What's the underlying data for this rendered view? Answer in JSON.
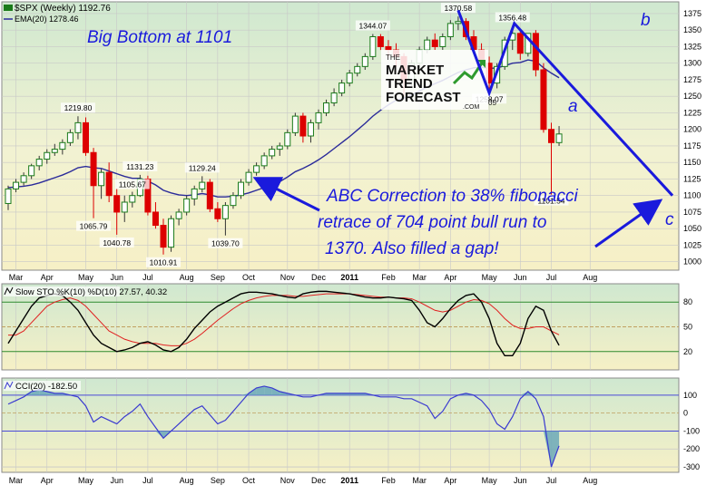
{
  "header": {
    "symbol": "$SPX (Weekly) 1192.76",
    "ema_legend": "EMA(20) 1278.46"
  },
  "annotations": {
    "big_bottom": "Big Bottom at 1101",
    "abc_lines": [
      "ABC Correction to 38% fibonacci",
      "retrace of 704 point bull run to",
      "1370. Also filled a gap!"
    ],
    "wave_a": "a",
    "wave_b": "b",
    "wave_c": "c"
  },
  "logo": {
    "line1": "THE",
    "line2": "MARKET",
    "line3": "TREND",
    "line4": "FORECAST",
    "line5": ".COM",
    "partial_label": "05"
  },
  "stoch_header": "Slow STO %K(10) %D(10) 27.57, 40.32",
  "cci_header": "CCI(20) -182.50",
  "colors": {
    "up_candle_border": "#1a7a1a",
    "down_candle_fill": "#dd0000",
    "ema_line": "#2b2b9a",
    "annotation_blue": "#1a1adc",
    "stoch_k": "#000000",
    "stoch_d": "#e02020",
    "cci_fill": "#6ba8b8",
    "cci_line": "#3a3ad0"
  },
  "chart_data": [
    {
      "type": "candlestick",
      "title": "$SPX (Weekly) 1192.76",
      "ylim": [
        990,
        1390
      ],
      "y_ticks": [
        1000,
        1025,
        1050,
        1075,
        1100,
        1125,
        1150,
        1175,
        1200,
        1225,
        1250,
        1275,
        1300,
        1325,
        1350,
        1375
      ],
      "x_labels": [
        "Mar",
        "Apr",
        "May",
        "Jun",
        "Jul",
        "Aug",
        "Sep",
        "Oct",
        "Nov",
        "Dec",
        "2011",
        "Feb",
        "Mar",
        "Apr",
        "May",
        "Jun",
        "Jul",
        "Aug"
      ],
      "x_label_week_index": [
        1,
        5,
        10,
        14,
        18,
        23,
        27,
        31,
        36,
        40,
        44,
        49,
        53,
        57,
        62,
        66,
        70,
        75
      ],
      "grid": true,
      "candles": [
        {
          "o": 1088,
          "h": 1115,
          "l": 1078,
          "c": 1110
        },
        {
          "o": 1110,
          "h": 1125,
          "l": 1105,
          "c": 1120
        },
        {
          "o": 1120,
          "h": 1135,
          "l": 1115,
          "c": 1130
        },
        {
          "o": 1130,
          "h": 1148,
          "l": 1125,
          "c": 1145
        },
        {
          "o": 1145,
          "h": 1160,
          "l": 1138,
          "c": 1155
        },
        {
          "o": 1155,
          "h": 1170,
          "l": 1148,
          "c": 1165
        },
        {
          "o": 1165,
          "h": 1178,
          "l": 1160,
          "c": 1170
        },
        {
          "o": 1170,
          "h": 1185,
          "l": 1162,
          "c": 1180
        },
        {
          "o": 1180,
          "h": 1200,
          "l": 1175,
          "c": 1195
        },
        {
          "o": 1195,
          "h": 1219.8,
          "l": 1185,
          "c": 1210
        },
        {
          "o": 1210,
          "h": 1218,
          "l": 1160,
          "c": 1165
        },
        {
          "o": 1165,
          "h": 1172,
          "l": 1065.79,
          "c": 1115
        },
        {
          "o": 1115,
          "h": 1140,
          "l": 1095,
          "c": 1135
        },
        {
          "o": 1135,
          "h": 1150,
          "l": 1090,
          "c": 1100
        },
        {
          "o": 1100,
          "h": 1110,
          "l": 1040.78,
          "c": 1075
        },
        {
          "o": 1075,
          "h": 1100,
          "l": 1060,
          "c": 1090
        },
        {
          "o": 1090,
          "h": 1105.67,
          "l": 1082,
          "c": 1100
        },
        {
          "o": 1100,
          "h": 1131.23,
          "l": 1098,
          "c": 1125
        },
        {
          "o": 1125,
          "h": 1130,
          "l": 1070,
          "c": 1075
        },
        {
          "o": 1075,
          "h": 1090,
          "l": 1050,
          "c": 1055
        },
        {
          "o": 1055,
          "h": 1065,
          "l": 1010.91,
          "c": 1022
        },
        {
          "o": 1022,
          "h": 1070,
          "l": 1015,
          "c": 1065
        },
        {
          "o": 1065,
          "h": 1080,
          "l": 1055,
          "c": 1075
        },
        {
          "o": 1075,
          "h": 1100,
          "l": 1070,
          "c": 1095
        },
        {
          "o": 1095,
          "h": 1115,
          "l": 1085,
          "c": 1110
        },
        {
          "o": 1110,
          "h": 1129.24,
          "l": 1105,
          "c": 1120
        },
        {
          "o": 1120,
          "h": 1125,
          "l": 1075,
          "c": 1080
        },
        {
          "o": 1080,
          "h": 1090,
          "l": 1060,
          "c": 1065
        },
        {
          "o": 1065,
          "h": 1090,
          "l": 1039.7,
          "c": 1085
        },
        {
          "o": 1085,
          "h": 1105,
          "l": 1080,
          "c": 1100
        },
        {
          "o": 1100,
          "h": 1125,
          "l": 1095,
          "c": 1120
        },
        {
          "o": 1120,
          "h": 1140,
          "l": 1115,
          "c": 1135
        },
        {
          "o": 1135,
          "h": 1150,
          "l": 1130,
          "c": 1145
        },
        {
          "o": 1145,
          "h": 1165,
          "l": 1140,
          "c": 1160
        },
        {
          "o": 1160,
          "h": 1175,
          "l": 1155,
          "c": 1170
        },
        {
          "o": 1170,
          "h": 1180,
          "l": 1160,
          "c": 1175
        },
        {
          "o": 1175,
          "h": 1200,
          "l": 1170,
          "c": 1195
        },
        {
          "o": 1195,
          "h": 1225,
          "l": 1190,
          "c": 1220
        },
        {
          "o": 1220,
          "h": 1225,
          "l": 1180,
          "c": 1190
        },
        {
          "o": 1190,
          "h": 1215,
          "l": 1180,
          "c": 1210
        },
        {
          "o": 1210,
          "h": 1230,
          "l": 1200,
          "c": 1225
        },
        {
          "o": 1225,
          "h": 1245,
          "l": 1220,
          "c": 1240
        },
        {
          "o": 1240,
          "h": 1262,
          "l": 1235,
          "c": 1255
        },
        {
          "o": 1255,
          "h": 1275,
          "l": 1250,
          "c": 1270
        },
        {
          "o": 1270,
          "h": 1290,
          "l": 1265,
          "c": 1285
        },
        {
          "o": 1285,
          "h": 1300,
          "l": 1280,
          "c": 1295
        },
        {
          "o": 1295,
          "h": 1315,
          "l": 1290,
          "c": 1310
        },
        {
          "o": 1310,
          "h": 1344.07,
          "l": 1305,
          "c": 1340
        },
        {
          "o": 1340,
          "h": 1344,
          "l": 1320,
          "c": 1325
        },
        {
          "o": 1325,
          "h": 1335,
          "l": 1310,
          "c": 1320
        },
        {
          "o": 1320,
          "h": 1330,
          "l": 1295,
          "c": 1310
        },
        {
          "o": 1310,
          "h": 1315,
          "l": 1250,
          "c": 1275
        },
        {
          "o": 1275,
          "h": 1305,
          "l": 1265,
          "c": 1300
        },
        {
          "o": 1300,
          "h": 1325,
          "l": 1295,
          "c": 1320
        },
        {
          "o": 1320,
          "h": 1340,
          "l": 1315,
          "c": 1335
        },
        {
          "o": 1335,
          "h": 1345,
          "l": 1320,
          "c": 1325
        },
        {
          "o": 1325,
          "h": 1345,
          "l": 1320,
          "c": 1340
        },
        {
          "o": 1340,
          "h": 1365,
          "l": 1335,
          "c": 1360
        },
        {
          "o": 1360,
          "h": 1370.58,
          "l": 1350,
          "c": 1363
        },
        {
          "o": 1363,
          "h": 1368,
          "l": 1335,
          "c": 1340
        },
        {
          "o": 1340,
          "h": 1350,
          "l": 1315,
          "c": 1320
        },
        {
          "o": 1320,
          "h": 1330,
          "l": 1295,
          "c": 1300
        },
        {
          "o": 1300,
          "h": 1310,
          "l": 1258.07,
          "c": 1270
        },
        {
          "o": 1270,
          "h": 1300,
          "l": 1262,
          "c": 1295
        },
        {
          "o": 1295,
          "h": 1340,
          "l": 1290,
          "c": 1335
        },
        {
          "o": 1335,
          "h": 1356.48,
          "l": 1320,
          "c": 1345
        },
        {
          "o": 1345,
          "h": 1350,
          "l": 1305,
          "c": 1315
        },
        {
          "o": 1315,
          "h": 1345,
          "l": 1310,
          "c": 1345
        },
        {
          "o": 1345,
          "h": 1350,
          "l": 1280,
          "c": 1290
        },
        {
          "o": 1290,
          "h": 1300,
          "l": 1195,
          "c": 1200
        },
        {
          "o": 1200,
          "h": 1210,
          "l": 1101.54,
          "c": 1180
        },
        {
          "o": 1180,
          "h": 1205,
          "l": 1175,
          "c": 1193
        }
      ],
      "ema20": [
        1112,
        1113,
        1114,
        1116,
        1119,
        1123,
        1127,
        1131,
        1136,
        1142,
        1144,
        1142,
        1141,
        1137,
        1133,
        1129,
        1126,
        1126,
        1122,
        1116,
        1108,
        1104,
        1101,
        1100,
        1101,
        1103,
        1101,
        1098,
        1098,
        1099,
        1101,
        1104,
        1108,
        1112,
        1117,
        1121,
        1128,
        1136,
        1141,
        1147,
        1154,
        1162,
        1171,
        1180,
        1189,
        1199,
        1209,
        1220,
        1229,
        1237,
        1244,
        1247,
        1252,
        1258,
        1264,
        1269,
        1274,
        1280,
        1286,
        1290,
        1293,
        1294,
        1292,
        1293,
        1296,
        1300,
        1301,
        1305,
        1303,
        1293,
        1285,
        1278
      ]
    },
    {
      "type": "line",
      "title": "Slow STO %K(10) %D(10) 27.57, 40.32",
      "ylim": [
        0,
        100
      ],
      "y_ticks": [
        20,
        50,
        80
      ],
      "series": [
        {
          "name": "%K",
          "values": [
            30,
            45,
            60,
            75,
            85,
            88,
            90,
            88,
            80,
            70,
            55,
            40,
            30,
            25,
            20,
            22,
            25,
            30,
            32,
            28,
            22,
            20,
            25,
            35,
            48,
            58,
            68,
            75,
            80,
            85,
            90,
            92,
            92,
            91,
            90,
            88,
            86,
            85,
            90,
            92,
            93,
            93,
            92,
            91,
            90,
            88,
            86,
            85,
            85,
            86,
            85,
            84,
            82,
            70,
            55,
            50,
            60,
            72,
            82,
            88,
            90,
            80,
            60,
            30,
            15,
            15,
            30,
            60,
            75,
            70,
            45,
            27.57
          ]
        },
        {
          "name": "%D",
          "values": [
            40,
            40,
            45,
            55,
            65,
            75,
            80,
            83,
            85,
            82,
            75,
            65,
            55,
            45,
            40,
            35,
            32,
            30,
            30,
            30,
            28,
            27,
            27,
            30,
            35,
            42,
            50,
            58,
            65,
            72,
            78,
            82,
            85,
            87,
            88,
            88,
            88,
            87,
            87,
            88,
            89,
            90,
            90,
            90,
            90,
            89,
            88,
            87,
            86,
            86,
            85,
            85,
            84,
            80,
            75,
            70,
            68,
            70,
            75,
            80,
            83,
            82,
            78,
            70,
            60,
            52,
            48,
            48,
            50,
            50,
            45,
            40.32
          ]
        }
      ]
    },
    {
      "type": "area",
      "title": "CCI(20) -182.50",
      "ylim": [
        -320,
        180
      ],
      "y_ticks": [
        -300,
        -200,
        -100,
        0,
        100
      ],
      "series": [
        {
          "name": "CCI(20)",
          "values": [
            50,
            70,
            90,
            120,
            130,
            120,
            110,
            110,
            100,
            90,
            40,
            -50,
            -20,
            -40,
            -60,
            -20,
            10,
            50,
            -20,
            -80,
            -140,
            -100,
            -60,
            -20,
            20,
            40,
            -10,
            -60,
            -40,
            10,
            60,
            110,
            140,
            150,
            140,
            120,
            110,
            100,
            90,
            90,
            100,
            110,
            110,
            110,
            110,
            110,
            110,
            100,
            90,
            90,
            90,
            80,
            80,
            60,
            40,
            -30,
            10,
            80,
            100,
            110,
            100,
            70,
            20,
            -60,
            -90,
            -20,
            80,
            120,
            80,
            -20,
            -300,
            -182.5
          ]
        }
      ]
    }
  ]
}
